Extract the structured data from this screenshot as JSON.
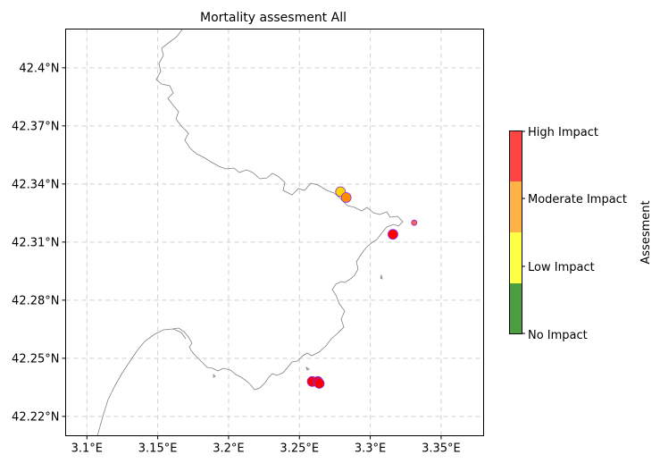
{
  "title": "Mortality assesment All",
  "x_ticks": [
    "3.1°E",
    "3.15°E",
    "3.2°E",
    "3.25°E",
    "3.3°E",
    "3.35°E"
  ],
  "y_ticks": [
    "42.4°N",
    "42.37°N",
    "42.34°N",
    "42.31°N",
    "42.28°N",
    "42.25°N",
    "42.22°N"
  ],
  "colorbar": {
    "label": "Assesment",
    "ticks": [
      "High Impact",
      "Moderate Impact",
      "Low Impact",
      "No Impact"
    ],
    "colors": [
      "#ff4444",
      "#ffb347",
      "#ffff44",
      "#4a9e3f"
    ]
  },
  "colors": {
    "coastline": "#808080",
    "grid": "#d0d0d0",
    "marker_edge": "#8a2be2"
  },
  "chart_data": {
    "type": "scatter",
    "title": "Mortality assesment All",
    "xlim": [
      3.085,
      3.38
    ],
    "ylim": [
      42.21,
      42.42
    ],
    "grid": true,
    "projection": "geographic lon/lat",
    "points": [
      {
        "lon": 3.279,
        "lat": 42.336,
        "assessment": "Low Impact",
        "color": "#ffd700"
      },
      {
        "lon": 3.283,
        "lat": 42.333,
        "assessment": "Moderate Impact",
        "color": "#ff8c00"
      },
      {
        "lon": 3.316,
        "lat": 42.314,
        "assessment": "High Impact",
        "color": "#ff0000"
      },
      {
        "lon": 3.331,
        "lat": 42.32,
        "assessment": "Moderate Impact",
        "color": "#ff6347"
      },
      {
        "lon": 3.259,
        "lat": 42.238,
        "assessment": "High Impact",
        "color": "#ff0000"
      },
      {
        "lon": 3.263,
        "lat": 42.238,
        "assessment": "High Impact",
        "color": "#ff0000"
      },
      {
        "lon": 3.264,
        "lat": 42.237,
        "assessment": "High Impact",
        "color": "#ff0000"
      }
    ]
  }
}
